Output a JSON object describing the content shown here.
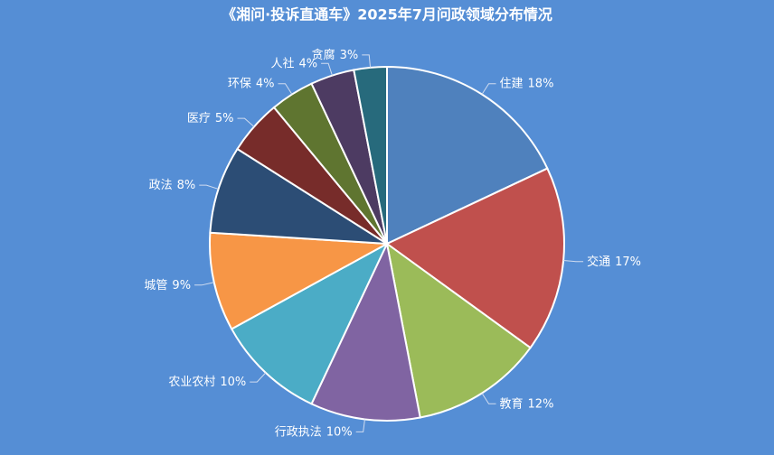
{
  "chart_data": {
    "type": "pie",
    "title": "《湘问·投诉直通车》2025年7月问政领域分布情况",
    "categories": [
      "住建",
      "交通",
      "教育",
      "行政执法",
      "农业农村",
      "城管",
      "政法",
      "医疗",
      "环保",
      "人社",
      "贪腐"
    ],
    "values": [
      18,
      17,
      12,
      10,
      10,
      9,
      8,
      5,
      4,
      4,
      3
    ],
    "value_labels": [
      "18%",
      "17%",
      "12%",
      "10%",
      "10%",
      "9%",
      "8%",
      "5%",
      "4%",
      "4%",
      "3%"
    ],
    "colors": [
      "#4f81bd",
      "#c0504d",
      "#9bbb59",
      "#8064a2",
      "#4bacc6",
      "#f79646",
      "#2c4d75",
      "#772c2a",
      "#5f7530",
      "#4d3b62",
      "#276a7c"
    ]
  }
}
